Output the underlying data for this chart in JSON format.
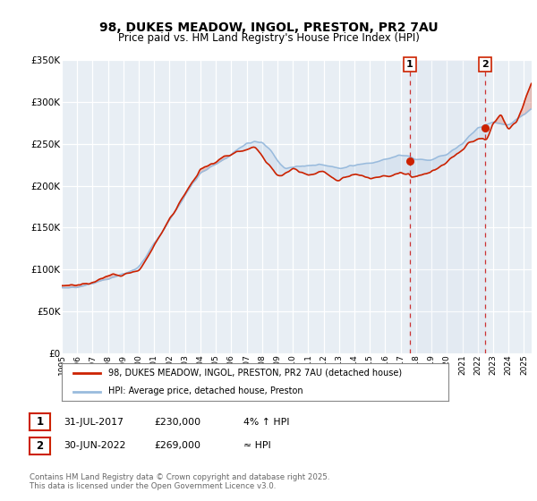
{
  "title": "98, DUKES MEADOW, INGOL, PRESTON, PR2 7AU",
  "subtitle": "Price paid vs. HM Land Registry's House Price Index (HPI)",
  "ylim": [
    0,
    350000
  ],
  "yticks": [
    0,
    50000,
    100000,
    150000,
    200000,
    250000,
    300000,
    350000
  ],
  "ytick_labels": [
    "£0",
    "£50K",
    "£100K",
    "£150K",
    "£200K",
    "£250K",
    "£300K",
    "£350K"
  ],
  "background_color": "#ffffff",
  "plot_bg_color": "#e8eef4",
  "grid_color": "#ffffff",
  "red_color": "#cc2200",
  "blue_color": "#99bbdd",
  "sale1_x": 2017.58,
  "sale1_price": 230000,
  "sale1_date": "31-JUL-2017",
  "sale1_note": "4% ↑ HPI",
  "sale2_x": 2022.5,
  "sale2_price": 269000,
  "sale2_date": "30-JUN-2022",
  "sale2_note": "≈ HPI",
  "legend_label_red": "98, DUKES MEADOW, INGOL, PRESTON, PR2 7AU (detached house)",
  "legend_label_blue": "HPI: Average price, detached house, Preston",
  "footer_line1": "Contains HM Land Registry data © Crown copyright and database right 2025.",
  "footer_line2": "This data is licensed under the Open Government Licence v3.0.",
  "xlim_left": 1995,
  "xlim_right": 2025.5
}
